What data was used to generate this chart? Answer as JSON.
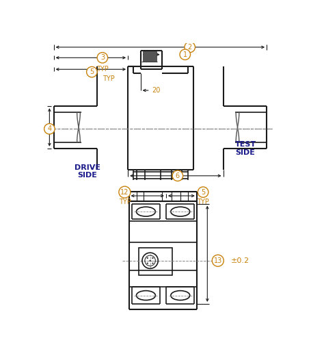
{
  "fig_width": 4.55,
  "fig_height": 5.23,
  "dpi": 100,
  "bg_color": "#ffffff",
  "line_color": "#1a1a1a",
  "dim_color": "#1a1a1a",
  "orange": "#c8820a",
  "blue_text": "#1a1a8a",
  "drive_side_text": "DRIVE\nSIDE",
  "test_side_text": "TEST\nSIDE",
  "pm02": "±0.2"
}
